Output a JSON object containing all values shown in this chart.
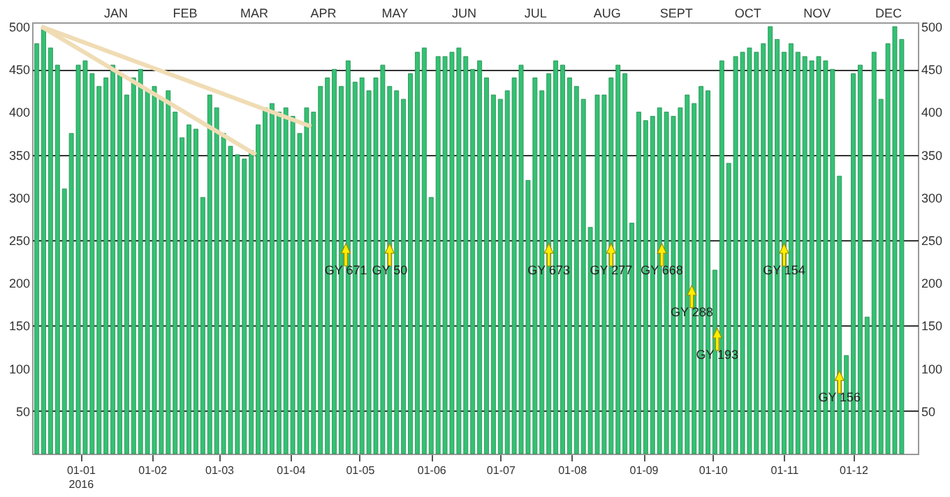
{
  "chart_data": {
    "type": "bar",
    "x": [
      "2015-12-13",
      "2015-12-16",
      "2015-12-19",
      "2015-12-22",
      "2015-12-25",
      "2015-12-28",
      "2015-12-31",
      "2016-01-03",
      "2016-01-06",
      "2016-01-09",
      "2016-01-12",
      "2016-01-15",
      "2016-01-18",
      "2016-01-21",
      "2016-01-24",
      "2016-01-27",
      "2016-01-30",
      "2016-02-02",
      "2016-02-05",
      "2016-02-08",
      "2016-02-11",
      "2016-02-14",
      "2016-02-17",
      "2016-02-20",
      "2016-02-23",
      "2016-02-26",
      "2016-02-29",
      "2016-03-03",
      "2016-03-06",
      "2016-03-09",
      "2016-03-12",
      "2016-03-15",
      "2016-03-18",
      "2016-03-21",
      "2016-03-24",
      "2016-03-27",
      "2016-03-30",
      "2016-04-02",
      "2016-04-05",
      "2016-04-08",
      "2016-04-11",
      "2016-04-14",
      "2016-04-17",
      "2016-04-20",
      "2016-04-23",
      "2016-04-26",
      "2016-04-29",
      "2016-05-02",
      "2016-05-05",
      "2016-05-08",
      "2016-05-11",
      "2016-05-14",
      "2016-05-17",
      "2016-05-20",
      "2016-05-23",
      "2016-05-26",
      "2016-05-29",
      "2016-06-01",
      "2016-06-04",
      "2016-06-07",
      "2016-06-10",
      "2016-06-13",
      "2016-06-16",
      "2016-06-19",
      "2016-06-22",
      "2016-06-25",
      "2016-06-28",
      "2016-07-01",
      "2016-07-04",
      "2016-07-07",
      "2016-07-10",
      "2016-07-13",
      "2016-07-16",
      "2016-07-19",
      "2016-07-22",
      "2016-07-25",
      "2016-07-28",
      "2016-07-31",
      "2016-08-03",
      "2016-08-06",
      "2016-08-09",
      "2016-08-12",
      "2016-08-15",
      "2016-08-18",
      "2016-08-21",
      "2016-08-24",
      "2016-08-27",
      "2016-08-30",
      "2016-09-02",
      "2016-09-05",
      "2016-09-08",
      "2016-09-11",
      "2016-09-14",
      "2016-09-17",
      "2016-09-20",
      "2016-09-23",
      "2016-09-26",
      "2016-09-29",
      "2016-10-02",
      "2016-10-05",
      "2016-10-08",
      "2016-10-11",
      "2016-10-14",
      "2016-10-17",
      "2016-10-20",
      "2016-10-23",
      "2016-10-26",
      "2016-10-29",
      "2016-11-01",
      "2016-11-04",
      "2016-11-07",
      "2016-11-10",
      "2016-11-13",
      "2016-11-16",
      "2016-11-19",
      "2016-11-22",
      "2016-11-25",
      "2016-11-28",
      "2016-12-01",
      "2016-12-04",
      "2016-12-07",
      "2016-12-10",
      "2016-12-13",
      "2016-12-16",
      "2016-12-19",
      "2016-12-22"
    ],
    "series": [
      {
        "type": "bar",
        "color": "#34c173",
        "values": [
          480,
          500,
          475,
          455,
          310,
          375,
          455,
          460,
          445,
          430,
          440,
          455,
          445,
          420,
          440,
          450,
          425,
          430,
          415,
          425,
          400,
          370,
          385,
          380,
          300,
          420,
          405,
          375,
          360,
          350,
          345,
          355,
          385,
          405,
          410,
          400,
          405,
          395,
          375,
          405,
          400,
          430,
          440,
          450,
          430,
          460,
          435,
          440,
          425,
          440,
          455,
          430,
          425,
          415,
          445,
          470,
          475,
          300,
          465,
          465,
          470,
          475,
          465,
          450,
          460,
          440,
          420,
          415,
          425,
          440,
          455,
          320,
          440,
          425,
          445,
          460,
          455,
          440,
          430,
          415,
          265,
          420,
          420,
          440,
          455,
          445,
          270,
          400,
          390,
          395,
          405,
          400,
          395,
          405,
          420,
          410,
          430,
          425,
          215,
          460,
          340,
          465,
          470,
          475,
          470,
          480,
          500,
          485,
          470,
          480,
          470,
          465,
          460,
          465,
          460,
          450,
          325,
          115,
          445,
          455,
          160,
          470,
          415,
          480,
          500,
          485
        ]
      },
      {
        "type": "line",
        "color": "#f0dcb4",
        "x": [
          "2015-12-15",
          "2016-04-10"
        ],
        "values": [
          500,
          383
        ]
      },
      {
        "type": "line",
        "color": "#f0dcb4",
        "x": [
          "2015-12-15",
          "2016-03-17"
        ],
        "values": [
          500,
          350
        ]
      }
    ],
    "xlim": [
      "2015-12-11",
      "2016-12-29"
    ],
    "xticks": [
      {
        "value": "2016-01-01",
        "label": "01-01\n2016"
      },
      {
        "value": "2016-02-01",
        "label": "01-02"
      },
      {
        "value": "2016-03-01",
        "label": "01-03"
      },
      {
        "value": "2016-04-01",
        "label": "01-04"
      },
      {
        "value": "2016-05-01",
        "label": "01-05"
      },
      {
        "value": "2016-06-01",
        "label": "01-06"
      },
      {
        "value": "2016-07-01",
        "label": "01-07"
      },
      {
        "value": "2016-08-01",
        "label": "01-08"
      },
      {
        "value": "2016-09-01",
        "label": "01-09"
      },
      {
        "value": "2016-10-01",
        "label": "01-10"
      },
      {
        "value": "2016-11-01",
        "label": "01-11"
      },
      {
        "value": "2016-12-01",
        "label": "01-12"
      }
    ],
    "x2lim": [
      "2015-12-11",
      "2016-12-29"
    ],
    "x2ticks": [
      {
        "value": "2016-01-16",
        "label": "JAN"
      },
      {
        "value": "2016-02-15",
        "label": "FEB"
      },
      {
        "value": "2016-03-16",
        "label": "MAR"
      },
      {
        "value": "2016-04-15",
        "label": "APR"
      },
      {
        "value": "2016-05-16",
        "label": "MAY"
      },
      {
        "value": "2016-06-15",
        "label": "JUN"
      },
      {
        "value": "2016-07-16",
        "label": "JUL"
      },
      {
        "value": "2016-08-16",
        "label": "AUG"
      },
      {
        "value": "2016-09-15",
        "label": "SEPT"
      },
      {
        "value": "2016-10-16",
        "label": "OCT"
      },
      {
        "value": "2016-11-15",
        "label": "NOV"
      },
      {
        "value": "2016-12-16",
        "label": "DEC"
      }
    ],
    "ylim": [
      0,
      505
    ],
    "yticks": [
      50,
      100,
      150,
      200,
      250,
      300,
      350,
      400,
      450,
      500
    ],
    "y2lim": [
      0,
      505
    ],
    "y2ticks": [
      50,
      100,
      150,
      200,
      250,
      300,
      350,
      400,
      450,
      500
    ],
    "grid": "y",
    "annotations": [
      {
        "text": "GY 671",
        "x": "2016-04-25",
        "y": 233
      },
      {
        "text": "GY 50",
        "x": "2016-05-14",
        "y": 233
      },
      {
        "text": "GY 673",
        "x": "2016-07-22",
        "y": 233
      },
      {
        "text": "GY 277",
        "x": "2016-08-18",
        "y": 233
      },
      {
        "text": "GY 668",
        "x": "2016-09-09",
        "y": 233
      },
      {
        "text": "GY 288",
        "x": "2016-09-22",
        "y": 184
      },
      {
        "text": "GY 193",
        "x": "2016-10-03",
        "y": 134
      },
      {
        "text": "GY 154",
        "x": "2016-11-01",
        "y": 233
      },
      {
        "text": "GY 156",
        "x": "2016-11-25",
        "y": 84
      }
    ]
  }
}
